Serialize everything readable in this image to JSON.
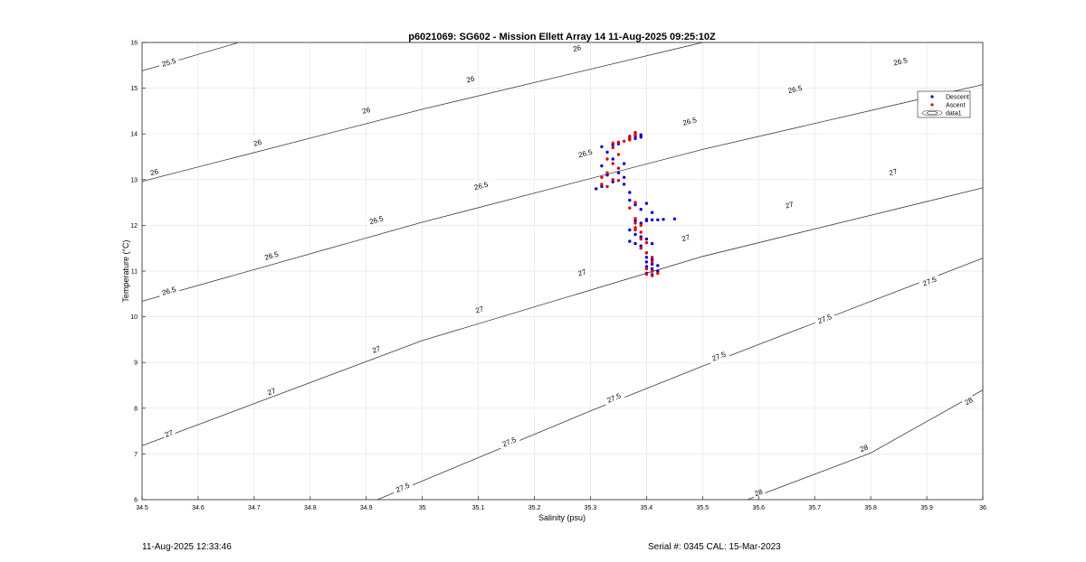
{
  "chart_data": {
    "type": "scatter",
    "title": "p6021069: SG602 - Mission Ellett Array 14 11-Aug-2025 09:25:10Z",
    "xlabel": "Salinity (psu)",
    "ylabel": "Temperature (°C)",
    "xlim": [
      34.5,
      36
    ],
    "ylim": [
      6,
      16
    ],
    "xticks": [
      "34.5",
      "34.6",
      "34.7",
      "34.8",
      "34.9",
      "35",
      "35.1",
      "35.2",
      "35.3",
      "35.4",
      "35.5",
      "35.6",
      "35.7",
      "35.8",
      "35.9",
      "36"
    ],
    "yticks": [
      "6",
      "7",
      "8",
      "9",
      "10",
      "11",
      "12",
      "13",
      "14",
      "15",
      "16"
    ],
    "grid": true,
    "legend_position": "top-right",
    "legend": [
      {
        "label": "Descent",
        "marker": "dot",
        "color": "#0000cc"
      },
      {
        "label": "Ascent",
        "marker": "dot",
        "color": "#dd0000"
      },
      {
        "label": "data1",
        "marker": "contour",
        "color": "#000000"
      }
    ],
    "contours": [
      {
        "level": "25.5",
        "points": [
          [
            34.5,
            15.38
          ],
          [
            34.67,
            15.99
          ]
        ],
        "labels": [
          [
            34.548,
            15.56
          ]
        ]
      },
      {
        "level": "26",
        "points": [
          [
            34.5,
            12.96
          ],
          [
            35,
            14.54
          ],
          [
            35.5,
            16.0
          ]
        ],
        "labels": [
          [
            34.522,
            13.16
          ],
          [
            34.706,
            13.8
          ],
          [
            34.9,
            14.51
          ],
          [
            35.086,
            15.19
          ],
          [
            35.276,
            15.87
          ]
        ]
      },
      {
        "level": "26.5",
        "points": [
          [
            34.5,
            10.34
          ],
          [
            35,
            12.07
          ],
          [
            35.5,
            13.66
          ],
          [
            36,
            15.08
          ]
        ],
        "labels": [
          [
            34.548,
            10.56
          ],
          [
            34.731,
            11.33
          ],
          [
            34.918,
            12.11
          ],
          [
            35.105,
            12.86
          ],
          [
            35.291,
            13.57
          ],
          [
            35.477,
            14.27
          ],
          [
            35.665,
            14.97
          ],
          [
            35.853,
            15.58
          ]
        ]
      },
      {
        "level": "27",
        "points": [
          [
            34.5,
            7.18
          ],
          [
            35,
            9.48
          ],
          [
            35.5,
            11.32
          ],
          [
            36,
            12.82
          ]
        ],
        "labels": [
          [
            34.548,
            7.44
          ],
          [
            34.731,
            8.36
          ],
          [
            34.918,
            9.28
          ],
          [
            35.102,
            10.15
          ],
          [
            35.285,
            10.96
          ],
          [
            35.47,
            11.72
          ],
          [
            35.655,
            12.44
          ],
          [
            35.84,
            13.16
          ]
        ]
      },
      {
        "level": "27.5",
        "points": [
          [
            34.92,
            6.0
          ],
          [
            35.3,
            7.94
          ],
          [
            35.5,
            8.92
          ],
          [
            36,
            11.28
          ]
        ],
        "labels": [
          [
            34.965,
            6.26
          ],
          [
            35.155,
            7.26
          ],
          [
            35.342,
            8.22
          ],
          [
            35.529,
            9.13
          ],
          [
            35.718,
            9.95
          ],
          [
            35.905,
            10.77
          ]
        ]
      },
      {
        "level": "28",
        "points": [
          [
            35.58,
            6.0
          ],
          [
            35.8,
            7.02
          ],
          [
            36,
            8.4
          ]
        ],
        "labels": [
          [
            35.6,
            6.15
          ],
          [
            35.788,
            7.12
          ],
          [
            35.975,
            8.15
          ]
        ]
      }
    ],
    "series": [
      {
        "name": "Descent",
        "color": "#0000cc",
        "points": [
          [
            35.32,
            13.72
          ],
          [
            35.33,
            13.6
          ],
          [
            35.34,
            13.76
          ],
          [
            35.35,
            13.78
          ],
          [
            35.32,
            13.3
          ],
          [
            35.34,
            13.45
          ],
          [
            35.36,
            13.35
          ],
          [
            35.33,
            13.1
          ],
          [
            35.35,
            13.15
          ],
          [
            35.36,
            13.05
          ],
          [
            35.31,
            12.8
          ],
          [
            35.32,
            12.85
          ],
          [
            35.34,
            12.95
          ],
          [
            35.36,
            12.9
          ],
          [
            35.37,
            12.72
          ],
          [
            35.37,
            13.88
          ],
          [
            35.38,
            13.95
          ],
          [
            35.38,
            14.02
          ],
          [
            35.39,
            13.98
          ],
          [
            35.38,
            13.9
          ],
          [
            35.39,
            13.93
          ],
          [
            35.37,
            12.55
          ],
          [
            35.38,
            12.45
          ],
          [
            35.39,
            12.35
          ],
          [
            35.4,
            12.48
          ],
          [
            35.41,
            12.28
          ],
          [
            35.38,
            12.1
          ],
          [
            35.39,
            12.05
          ],
          [
            35.4,
            12.1
          ],
          [
            35.4,
            12.13
          ],
          [
            35.41,
            12.12
          ],
          [
            35.42,
            12.12
          ],
          [
            35.43,
            12.13
          ],
          [
            35.45,
            12.14
          ],
          [
            35.37,
            11.9
          ],
          [
            35.38,
            11.8
          ],
          [
            35.39,
            11.75
          ],
          [
            35.37,
            11.65
          ],
          [
            35.38,
            11.6
          ],
          [
            35.39,
            11.55
          ],
          [
            35.4,
            11.7
          ],
          [
            35.41,
            11.6
          ],
          [
            35.4,
            11.3
          ],
          [
            35.4,
            11.2
          ],
          [
            35.4,
            11.1
          ],
          [
            35.41,
            11.0
          ],
          [
            35.4,
            10.95
          ],
          [
            35.41,
            10.92
          ],
          [
            35.41,
            11.05
          ],
          [
            35.42,
            11.0
          ],
          [
            35.41,
            11.15
          ],
          [
            35.42,
            11.12
          ],
          [
            35.41,
            11.25
          ],
          [
            35.4,
            11.4
          ]
        ]
      },
      {
        "name": "Ascent",
        "color": "#dd0000",
        "points": [
          [
            35.34,
            13.8
          ],
          [
            35.35,
            13.82
          ],
          [
            35.36,
            13.84
          ],
          [
            35.37,
            13.87
          ],
          [
            35.37,
            13.92
          ],
          [
            35.38,
            13.97
          ],
          [
            35.38,
            14.03
          ],
          [
            35.37,
            13.95
          ],
          [
            35.34,
            13.7
          ],
          [
            35.35,
            13.55
          ],
          [
            35.33,
            13.45
          ],
          [
            35.34,
            13.35
          ],
          [
            35.35,
            13.25
          ],
          [
            35.33,
            13.15
          ],
          [
            35.32,
            13.05
          ],
          [
            35.34,
            13.0
          ],
          [
            35.32,
            12.9
          ],
          [
            35.33,
            12.85
          ],
          [
            35.35,
            12.98
          ],
          [
            35.38,
            12.5
          ],
          [
            35.37,
            12.38
          ],
          [
            35.38,
            12.15
          ],
          [
            35.38,
            12.05
          ],
          [
            35.39,
            12.0
          ],
          [
            35.38,
            11.95
          ],
          [
            35.38,
            11.9
          ],
          [
            35.39,
            11.85
          ],
          [
            35.39,
            11.7
          ],
          [
            35.4,
            11.62
          ],
          [
            35.39,
            11.5
          ],
          [
            35.4,
            11.4
          ],
          [
            35.41,
            11.3
          ],
          [
            35.41,
            11.2
          ],
          [
            35.4,
            11.05
          ],
          [
            35.41,
            11.0
          ],
          [
            35.4,
            10.93
          ],
          [
            35.42,
            10.95
          ],
          [
            35.41,
            10.9
          ]
        ]
      }
    ]
  },
  "footer": {
    "timestamp": "11-Aug-2025 12:33:46",
    "serial": "Serial #: 0345  CAL: 15-Mar-2023"
  }
}
